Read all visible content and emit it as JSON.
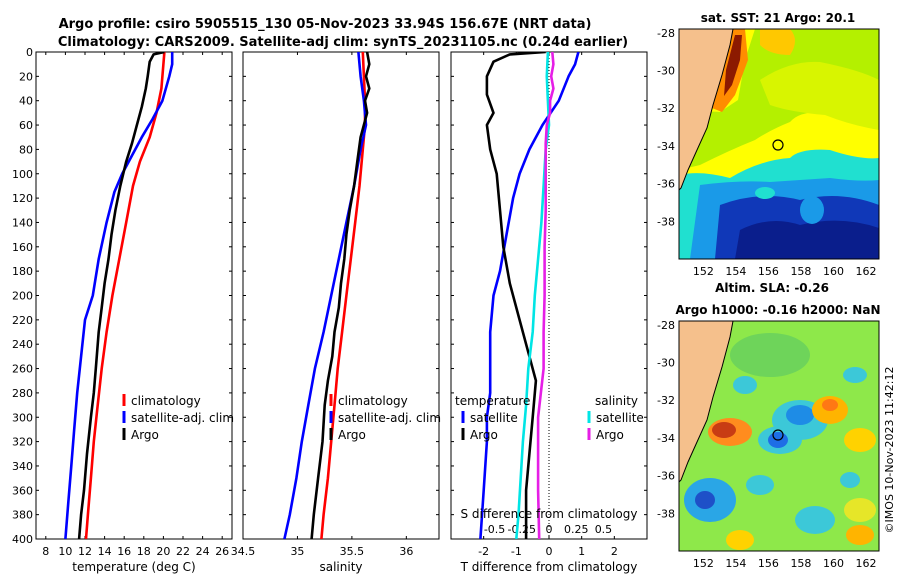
{
  "figure": {
    "title_line1": "Argo profile: csiro 5905515_130 05-Nov-2023 33.94S 156.67E (NRT data)",
    "title_line2": "Climatology: CARS2009. Satellite-adj clim: synTS_20231105.nc (0.24d earlier)",
    "credit": "©IMOS 10-Nov-2023 11:42:12"
  },
  "colors": {
    "climatology": "#ff0000",
    "satellite": "#0000ff",
    "argo": "#000000",
    "salinity_satellite": "#00e5e5",
    "salinity_argo": "#e61ee6",
    "land": "#f5c08c"
  },
  "chart_data": [
    {
      "type": "line",
      "id": "temperature",
      "xlabel": "temperature (deg C)",
      "ylabel": "",
      "xlim": [
        7,
        27
      ],
      "ylim": [
        400,
        0
      ],
      "xticks": [
        8,
        10,
        12,
        14,
        16,
        18,
        20,
        22,
        24,
        26
      ],
      "yticks": [
        0,
        20,
        40,
        60,
        80,
        100,
        120,
        140,
        160,
        180,
        200,
        220,
        240,
        260,
        280,
        300,
        320,
        340,
        360,
        380,
        400
      ],
      "legend": [
        "climatology",
        "satellite-adj. clim",
        "Argo"
      ],
      "legend_location": "lower-right",
      "series": [
        {
          "name": "climatology",
          "color": "#ff0000",
          "points": [
            [
              20.1,
              0
            ],
            [
              20.0,
              10
            ],
            [
              19.8,
              30
            ],
            [
              19.3,
              50
            ],
            [
              18.6,
              70
            ],
            [
              17.6,
              90
            ],
            [
              16.9,
              110
            ],
            [
              16.2,
              140
            ],
            [
              15.5,
              170
            ],
            [
              14.8,
              200
            ],
            [
              14.2,
              230
            ],
            [
              13.7,
              260
            ],
            [
              13.3,
              290
            ],
            [
              12.9,
              320
            ],
            [
              12.6,
              350
            ],
            [
              12.3,
              380
            ],
            [
              12.1,
              400
            ]
          ]
        },
        {
          "name": "satellite-adj. clim",
          "color": "#0000ff",
          "points": [
            [
              20.9,
              0
            ],
            [
              20.9,
              10
            ],
            [
              20.6,
              20
            ],
            [
              19.9,
              40
            ],
            [
              18.9,
              55
            ],
            [
              17.8,
              70
            ],
            [
              16.8,
              85
            ],
            [
              15.8,
              100
            ],
            [
              15.0,
              115
            ],
            [
              14.2,
              140
            ],
            [
              13.4,
              170
            ],
            [
              12.8,
              200
            ],
            [
              12.0,
              220
            ],
            [
              11.6,
              250
            ],
            [
              11.2,
              280
            ],
            [
              10.9,
              310
            ],
            [
              10.6,
              340
            ],
            [
              10.3,
              370
            ],
            [
              10.0,
              400
            ]
          ]
        },
        {
          "name": "Argo",
          "color": "#000000",
          "points": [
            [
              20.1,
              0
            ],
            [
              19.0,
              2
            ],
            [
              18.6,
              8
            ],
            [
              18.4,
              20
            ],
            [
              18.2,
              30
            ],
            [
              17.8,
              45
            ],
            [
              17.3,
              60
            ],
            [
              16.8,
              75
            ],
            [
              16.2,
              90
            ],
            [
              15.6,
              110
            ],
            [
              15.1,
              130
            ],
            [
              14.7,
              150
            ],
            [
              14.4,
              170
            ],
            [
              14.0,
              190
            ],
            [
              13.7,
              210
            ],
            [
              13.4,
              230
            ],
            [
              13.1,
              260
            ],
            [
              12.9,
              280
            ],
            [
              12.6,
              300
            ],
            [
              12.2,
              330
            ],
            [
              11.9,
              360
            ],
            [
              11.6,
              380
            ],
            [
              11.4,
              400
            ]
          ]
        }
      ]
    },
    {
      "type": "line",
      "id": "salinity",
      "xlabel": "salinity",
      "ylabel": "",
      "xlim": [
        34.5,
        36.3
      ],
      "ylim": [
        400,
        0
      ],
      "xticks": [
        34.5,
        35,
        35.5,
        36
      ],
      "yticks": [],
      "legend": [
        "climatology",
        "satellite-adj. clim",
        "Argo"
      ],
      "legend_location": "lower-right",
      "series": [
        {
          "name": "climatology",
          "color": "#ff0000",
          "points": [
            [
              35.6,
              0
            ],
            [
              35.61,
              20
            ],
            [
              35.62,
              40
            ],
            [
              35.62,
              60
            ],
            [
              35.6,
              80
            ],
            [
              35.57,
              110
            ],
            [
              35.53,
              140
            ],
            [
              35.49,
              170
            ],
            [
              35.45,
              200
            ],
            [
              35.41,
              230
            ],
            [
              35.37,
              260
            ],
            [
              35.34,
              290
            ],
            [
              35.31,
              320
            ],
            [
              35.28,
              350
            ],
            [
              35.24,
              380
            ],
            [
              35.22,
              400
            ]
          ]
        },
        {
          "name": "satellite-adj. clim",
          "color": "#0000ff",
          "points": [
            [
              35.56,
              0
            ],
            [
              35.58,
              20
            ],
            [
              35.61,
              40
            ],
            [
              35.63,
              60
            ],
            [
              35.58,
              80
            ],
            [
              35.52,
              110
            ],
            [
              35.45,
              140
            ],
            [
              35.38,
              170
            ],
            [
              35.31,
              200
            ],
            [
              35.24,
              230
            ],
            [
              35.16,
              260
            ],
            [
              35.1,
              290
            ],
            [
              35.04,
              320
            ],
            [
              34.99,
              350
            ],
            [
              34.93,
              380
            ],
            [
              34.88,
              400
            ]
          ]
        },
        {
          "name": "Argo",
          "color": "#000000",
          "points": [
            [
              35.64,
              0
            ],
            [
              35.66,
              10
            ],
            [
              35.63,
              20
            ],
            [
              35.66,
              30
            ],
            [
              35.62,
              40
            ],
            [
              35.64,
              50
            ],
            [
              35.58,
              70
            ],
            [
              35.55,
              90
            ],
            [
              35.52,
              110
            ],
            [
              35.48,
              130
            ],
            [
              35.45,
              150
            ],
            [
              35.43,
              170
            ],
            [
              35.4,
              190
            ],
            [
              35.38,
              210
            ],
            [
              35.34,
              230
            ],
            [
              35.32,
              250
            ],
            [
              35.28,
              270
            ],
            [
              35.25,
              290
            ],
            [
              35.23,
              320
            ],
            [
              35.19,
              350
            ],
            [
              35.15,
              380
            ],
            [
              35.13,
              400
            ]
          ]
        }
      ]
    },
    {
      "type": "line",
      "id": "difference",
      "xlabel": "T difference from climatology",
      "x2label": "S difference from climatology",
      "xlim": [
        -3,
        3
      ],
      "x2lim": [
        -0.9,
        0.9
      ],
      "ylim": [
        400,
        0
      ],
      "xticks": [
        -2,
        -1,
        0,
        1,
        2
      ],
      "x2ticks": [
        -0.5,
        -0.25,
        0,
        0.25,
        0.5
      ],
      "x2ticklabels": [
        "-0.5",
        "-0.25",
        "0",
        "0.25",
        "0.5"
      ],
      "legend_temperature_title": "temperature",
      "legend_salinity_title": "salinity",
      "legend_temperature": [
        "satellite",
        "Argo"
      ],
      "legend_salinity": [
        "satellite",
        "Argo"
      ],
      "series": [
        {
          "name": "T satellite",
          "axis": "T",
          "color": "#0000ff",
          "points": [
            [
              0.9,
              0
            ],
            [
              0.8,
              10
            ],
            [
              0.6,
              20
            ],
            [
              0.3,
              40
            ],
            [
              -0.2,
              60
            ],
            [
              -0.6,
              80
            ],
            [
              -0.9,
              100
            ],
            [
              -1.1,
              120
            ],
            [
              -1.3,
              150
            ],
            [
              -1.5,
              180
            ],
            [
              -1.7,
              200
            ],
            [
              -1.8,
              230
            ],
            [
              -1.8,
              260
            ],
            [
              -1.8,
              280
            ],
            [
              -1.9,
              300
            ],
            [
              -1.9,
              320
            ],
            [
              -2.0,
              360
            ],
            [
              -2.1,
              400
            ]
          ]
        },
        {
          "name": "T Argo",
          "axis": "T",
          "color": "#000000",
          "points": [
            [
              -0.1,
              0
            ],
            [
              -1.2,
              2
            ],
            [
              -1.7,
              8
            ],
            [
              -1.9,
              20
            ],
            [
              -1.9,
              35
            ],
            [
              -1.7,
              50
            ],
            [
              -1.9,
              60
            ],
            [
              -1.8,
              80
            ],
            [
              -1.6,
              100
            ],
            [
              -1.5,
              130
            ],
            [
              -1.4,
              160
            ],
            [
              -1.2,
              190
            ],
            [
              -0.9,
              220
            ],
            [
              -0.6,
              250
            ],
            [
              -0.4,
              270
            ],
            [
              -0.5,
              300
            ],
            [
              -0.6,
              330
            ],
            [
              -0.7,
              360
            ],
            [
              -0.7,
              400
            ]
          ]
        },
        {
          "name": "S satellite",
          "axis": "S",
          "color": "#00e5e5",
          "points": [
            [
              -0.01,
              0
            ],
            [
              -0.02,
              20
            ],
            [
              -0.01,
              40
            ],
            [
              0.0,
              60
            ],
            [
              -0.03,
              80
            ],
            [
              -0.05,
              110
            ],
            [
              -0.07,
              140
            ],
            [
              -0.1,
              170
            ],
            [
              -0.13,
              200
            ],
            [
              -0.15,
              230
            ],
            [
              -0.19,
              260
            ],
            [
              -0.21,
              290
            ],
            [
              -0.24,
              320
            ],
            [
              -0.26,
              350
            ],
            [
              -0.28,
              380
            ],
            [
              -0.3,
              400
            ]
          ]
        },
        {
          "name": "S Argo",
          "axis": "S",
          "color": "#e61ee6",
          "points": [
            [
              0.03,
              0
            ],
            [
              0.04,
              10
            ],
            [
              0.02,
              20
            ],
            [
              0.04,
              30
            ],
            [
              0.01,
              40
            ],
            [
              0.01,
              50
            ],
            [
              -0.02,
              60
            ],
            [
              -0.03,
              75
            ],
            [
              -0.03,
              100
            ],
            [
              -0.03,
              130
            ],
            [
              -0.04,
              160
            ],
            [
              -0.04,
              200
            ],
            [
              -0.05,
              230
            ],
            [
              -0.05,
              260
            ],
            [
              -0.1,
              300
            ],
            [
              -0.1,
              330
            ],
            [
              -0.1,
              360
            ],
            [
              -0.09,
              400
            ]
          ]
        }
      ]
    }
  ],
  "maps": [
    {
      "id": "sst",
      "title": "sat. SST: 21 Argo: 20.1",
      "xticks": [
        152,
        154,
        156,
        158,
        160,
        162
      ],
      "yticks": [
        -28,
        -30,
        -32,
        -34,
        -36,
        -38
      ],
      "lon_range": [
        150.5,
        162.8
      ],
      "lat_range": [
        -27.8,
        -40.0
      ],
      "marker": {
        "lon": 156.67,
        "lat": -33.94
      }
    },
    {
      "id": "sla",
      "title_line1": "Altim. SLA: -0.26",
      "title_line2": "Argo h1000: -0.16 h2000: NaN",
      "xticks": [
        152,
        154,
        156,
        158,
        160,
        162
      ],
      "yticks": [
        -28,
        -30,
        -32,
        -34,
        -36,
        -38
      ],
      "lon_range": [
        150.5,
        162.8
      ],
      "lat_range": [
        -27.8,
        -40.0
      ],
      "marker": {
        "lon": 156.67,
        "lat": -33.94
      }
    }
  ]
}
